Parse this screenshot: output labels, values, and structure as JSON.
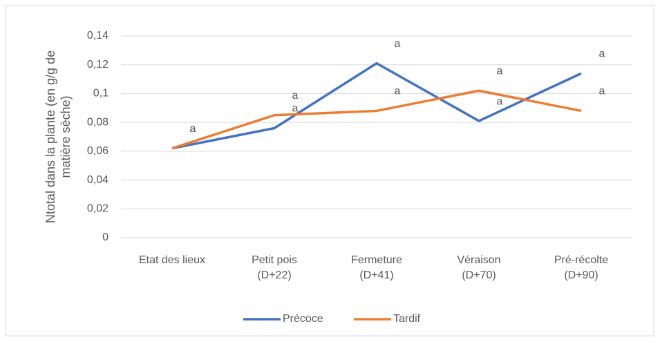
{
  "chart_data": {
    "type": "line",
    "ylabel": "Ntotal dans la plante (en g/g de\nmatière sèche)",
    "categories": [
      "Etat des lieux",
      "Petit pois\n(D+22)",
      "Fermeture\n(D+41)",
      "Véraison\n(D+70)",
      "Pré-récolte\n(D+90)"
    ],
    "series": [
      {
        "name": "Précoce",
        "color": "#4472c4",
        "values": [
          0.062,
          0.076,
          0.121,
          0.081,
          0.114
        ],
        "letters": [
          "a",
          "a",
          "a",
          "a",
          "a"
        ]
      },
      {
        "name": "Tardif",
        "color": "#ed7d31",
        "values": [
          0.062,
          0.085,
          0.088,
          0.102,
          0.088
        ],
        "letters": [
          "a",
          "a",
          "a",
          "a",
          "a"
        ]
      }
    ],
    "ylim": [
      0,
      0.14
    ],
    "yticks": [
      0,
      {
        "value": 0.02,
        "label": "0,02"
      },
      {
        "value": 0.04,
        "label": "0,04"
      },
      {
        "value": 0.06,
        "label": "0,06"
      },
      {
        "value": 0.08,
        "label": "0,08"
      },
      {
        "value": 0.1,
        "label": "0,1"
      },
      {
        "value": 0.12,
        "label": "0,12"
      },
      {
        "value": 0.14,
        "label": "0,14"
      }
    ],
    "grid": true,
    "legend": "bottom"
  }
}
